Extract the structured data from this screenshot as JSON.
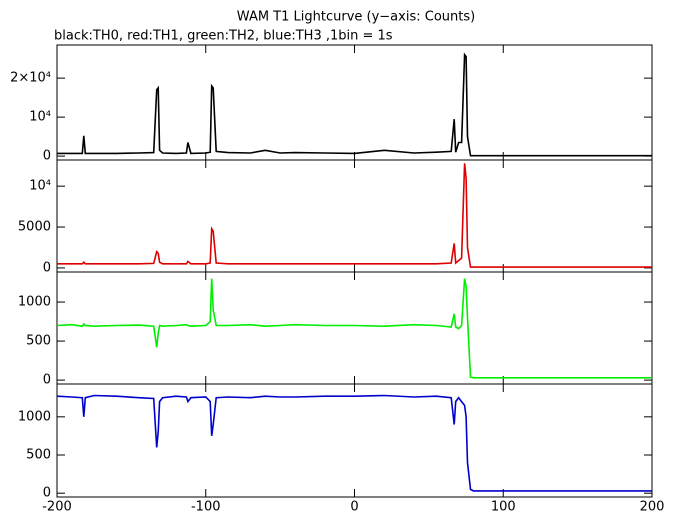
{
  "chart_data": [
    {
      "type": "line",
      "title": "WAM T1 Lightcurve (y−axis: Counts)",
      "subtitle": "black:TH0, red:TH1, green:TH2, blue:TH3 ,1bin = 1s",
      "color": "#000000",
      "x": [
        -200,
        -190,
        -183,
        -182,
        -181,
        -175,
        -160,
        -145,
        -135,
        -133,
        -132,
        -131,
        -129,
        -120,
        -113,
        -112,
        -110,
        -100,
        -97,
        -96,
        -95,
        -93,
        -85,
        -70,
        -60,
        -50,
        -40,
        -20,
        0,
        20,
        40,
        55,
        65,
        67,
        68,
        70,
        72,
        74,
        75,
        76,
        78,
        80,
        90,
        100,
        120,
        140,
        160,
        180,
        200
      ],
      "values": [
        700,
        700,
        700,
        5200,
        700,
        700,
        700,
        800,
        900,
        17000,
        17500,
        1500,
        800,
        700,
        800,
        3500,
        700,
        800,
        1000,
        18000,
        17500,
        1200,
        900,
        800,
        1500,
        800,
        900,
        800,
        700,
        1500,
        800,
        1000,
        1200,
        9500,
        1000,
        3500,
        3500,
        26000,
        25500,
        5000,
        100,
        100,
        100,
        100,
        100,
        100,
        100,
        100,
        100
      ],
      "xlim": [
        -200,
        200
      ],
      "xticks": [
        -200,
        -100,
        0,
        100,
        200
      ],
      "ylim": [
        -1000,
        28500
      ],
      "yticks": [
        0,
        {
          "value": 10000,
          "label": "10⁴"
        },
        {
          "value": 20000,
          "label": "2×10⁴"
        }
      ]
    },
    {
      "type": "line",
      "color": "#dd0000",
      "x": [
        -200,
        -190,
        -183,
        -182,
        -181,
        -175,
        -160,
        -145,
        -135,
        -133,
        -132,
        -131,
        -129,
        -120,
        -113,
        -112,
        -110,
        -100,
        -97,
        -96,
        -95,
        -93,
        -85,
        -70,
        -60,
        -50,
        -40,
        -20,
        0,
        20,
        40,
        55,
        65,
        67,
        68,
        70,
        72,
        74,
        75,
        76,
        78,
        80,
        90,
        100,
        120,
        140,
        160,
        180,
        200
      ],
      "values": [
        500,
        500,
        500,
        700,
        500,
        500,
        500,
        500,
        550,
        2000,
        1800,
        700,
        500,
        500,
        500,
        800,
        500,
        500,
        600,
        4800,
        4500,
        600,
        500,
        500,
        500,
        500,
        500,
        500,
        500,
        500,
        500,
        500,
        600,
        3000,
        600,
        900,
        1200,
        12800,
        11000,
        2500,
        100,
        100,
        100,
        100,
        100,
        100,
        100,
        100,
        100
      ],
      "xlim": [
        -200,
        200
      ],
      "xticks": [
        -200,
        -100,
        0,
        100,
        200
      ],
      "ylim": [
        -500,
        13200
      ],
      "yticks": [
        0,
        5000,
        {
          "value": 10000,
          "label": "10⁴"
        }
      ]
    },
    {
      "type": "line",
      "color": "#00ee00",
      "x": [
        -200,
        -190,
        -183,
        -182,
        -181,
        -175,
        -160,
        -145,
        -135,
        -133,
        -132,
        -131,
        -129,
        -120,
        -113,
        -112,
        -110,
        -100,
        -97,
        -96,
        -95,
        -93,
        -85,
        -70,
        -60,
        -50,
        -40,
        -20,
        0,
        20,
        40,
        55,
        65,
        67,
        68,
        70,
        72,
        74,
        75,
        76,
        78,
        80,
        90,
        100,
        120,
        140,
        160,
        180,
        200
      ],
      "values": [
        700,
        710,
        690,
        720,
        700,
        690,
        700,
        705,
        690,
        420,
        600,
        700,
        690,
        700,
        710,
        700,
        690,
        700,
        750,
        1300,
        900,
        700,
        700,
        710,
        690,
        700,
        710,
        700,
        700,
        690,
        710,
        700,
        680,
        850,
        680,
        660,
        700,
        1300,
        1200,
        800,
        40,
        30,
        30,
        30,
        30,
        30,
        30,
        30,
        30
      ],
      "xlim": [
        -200,
        200
      ],
      "xticks": [
        -200,
        -100,
        0,
        100,
        200
      ],
      "ylim": [
        -50,
        1385
      ],
      "yticks": [
        0,
        500,
        1000
      ]
    },
    {
      "type": "line",
      "color": "#0000cc",
      "x": [
        -200,
        -190,
        -183,
        -182,
        -181,
        -175,
        -160,
        -145,
        -135,
        -133,
        -132,
        -131,
        -129,
        -120,
        -113,
        -112,
        -110,
        -100,
        -97,
        -96,
        -95,
        -93,
        -85,
        -70,
        -60,
        -50,
        -40,
        -20,
        0,
        20,
        40,
        55,
        65,
        67,
        68,
        70,
        72,
        74,
        75,
        76,
        78,
        80,
        90,
        100,
        120,
        140,
        160,
        180,
        200
      ],
      "values": [
        1270,
        1260,
        1250,
        1000,
        1250,
        1280,
        1270,
        1250,
        1240,
        600,
        800,
        1200,
        1250,
        1270,
        1260,
        1200,
        1250,
        1260,
        1200,
        750,
        900,
        1250,
        1260,
        1250,
        1270,
        1260,
        1260,
        1270,
        1270,
        1280,
        1260,
        1270,
        1250,
        900,
        1200,
        1250,
        1200,
        1150,
        1000,
        400,
        50,
        30,
        30,
        30,
        30,
        30,
        30,
        30,
        30
      ],
      "xlim": [
        -200,
        200
      ],
      "xticks": [
        -200,
        -100,
        0,
        100,
        200
      ],
      "ylim": [
        -50,
        1430
      ],
      "yticks": [
        0,
        500,
        1000
      ]
    }
  ]
}
